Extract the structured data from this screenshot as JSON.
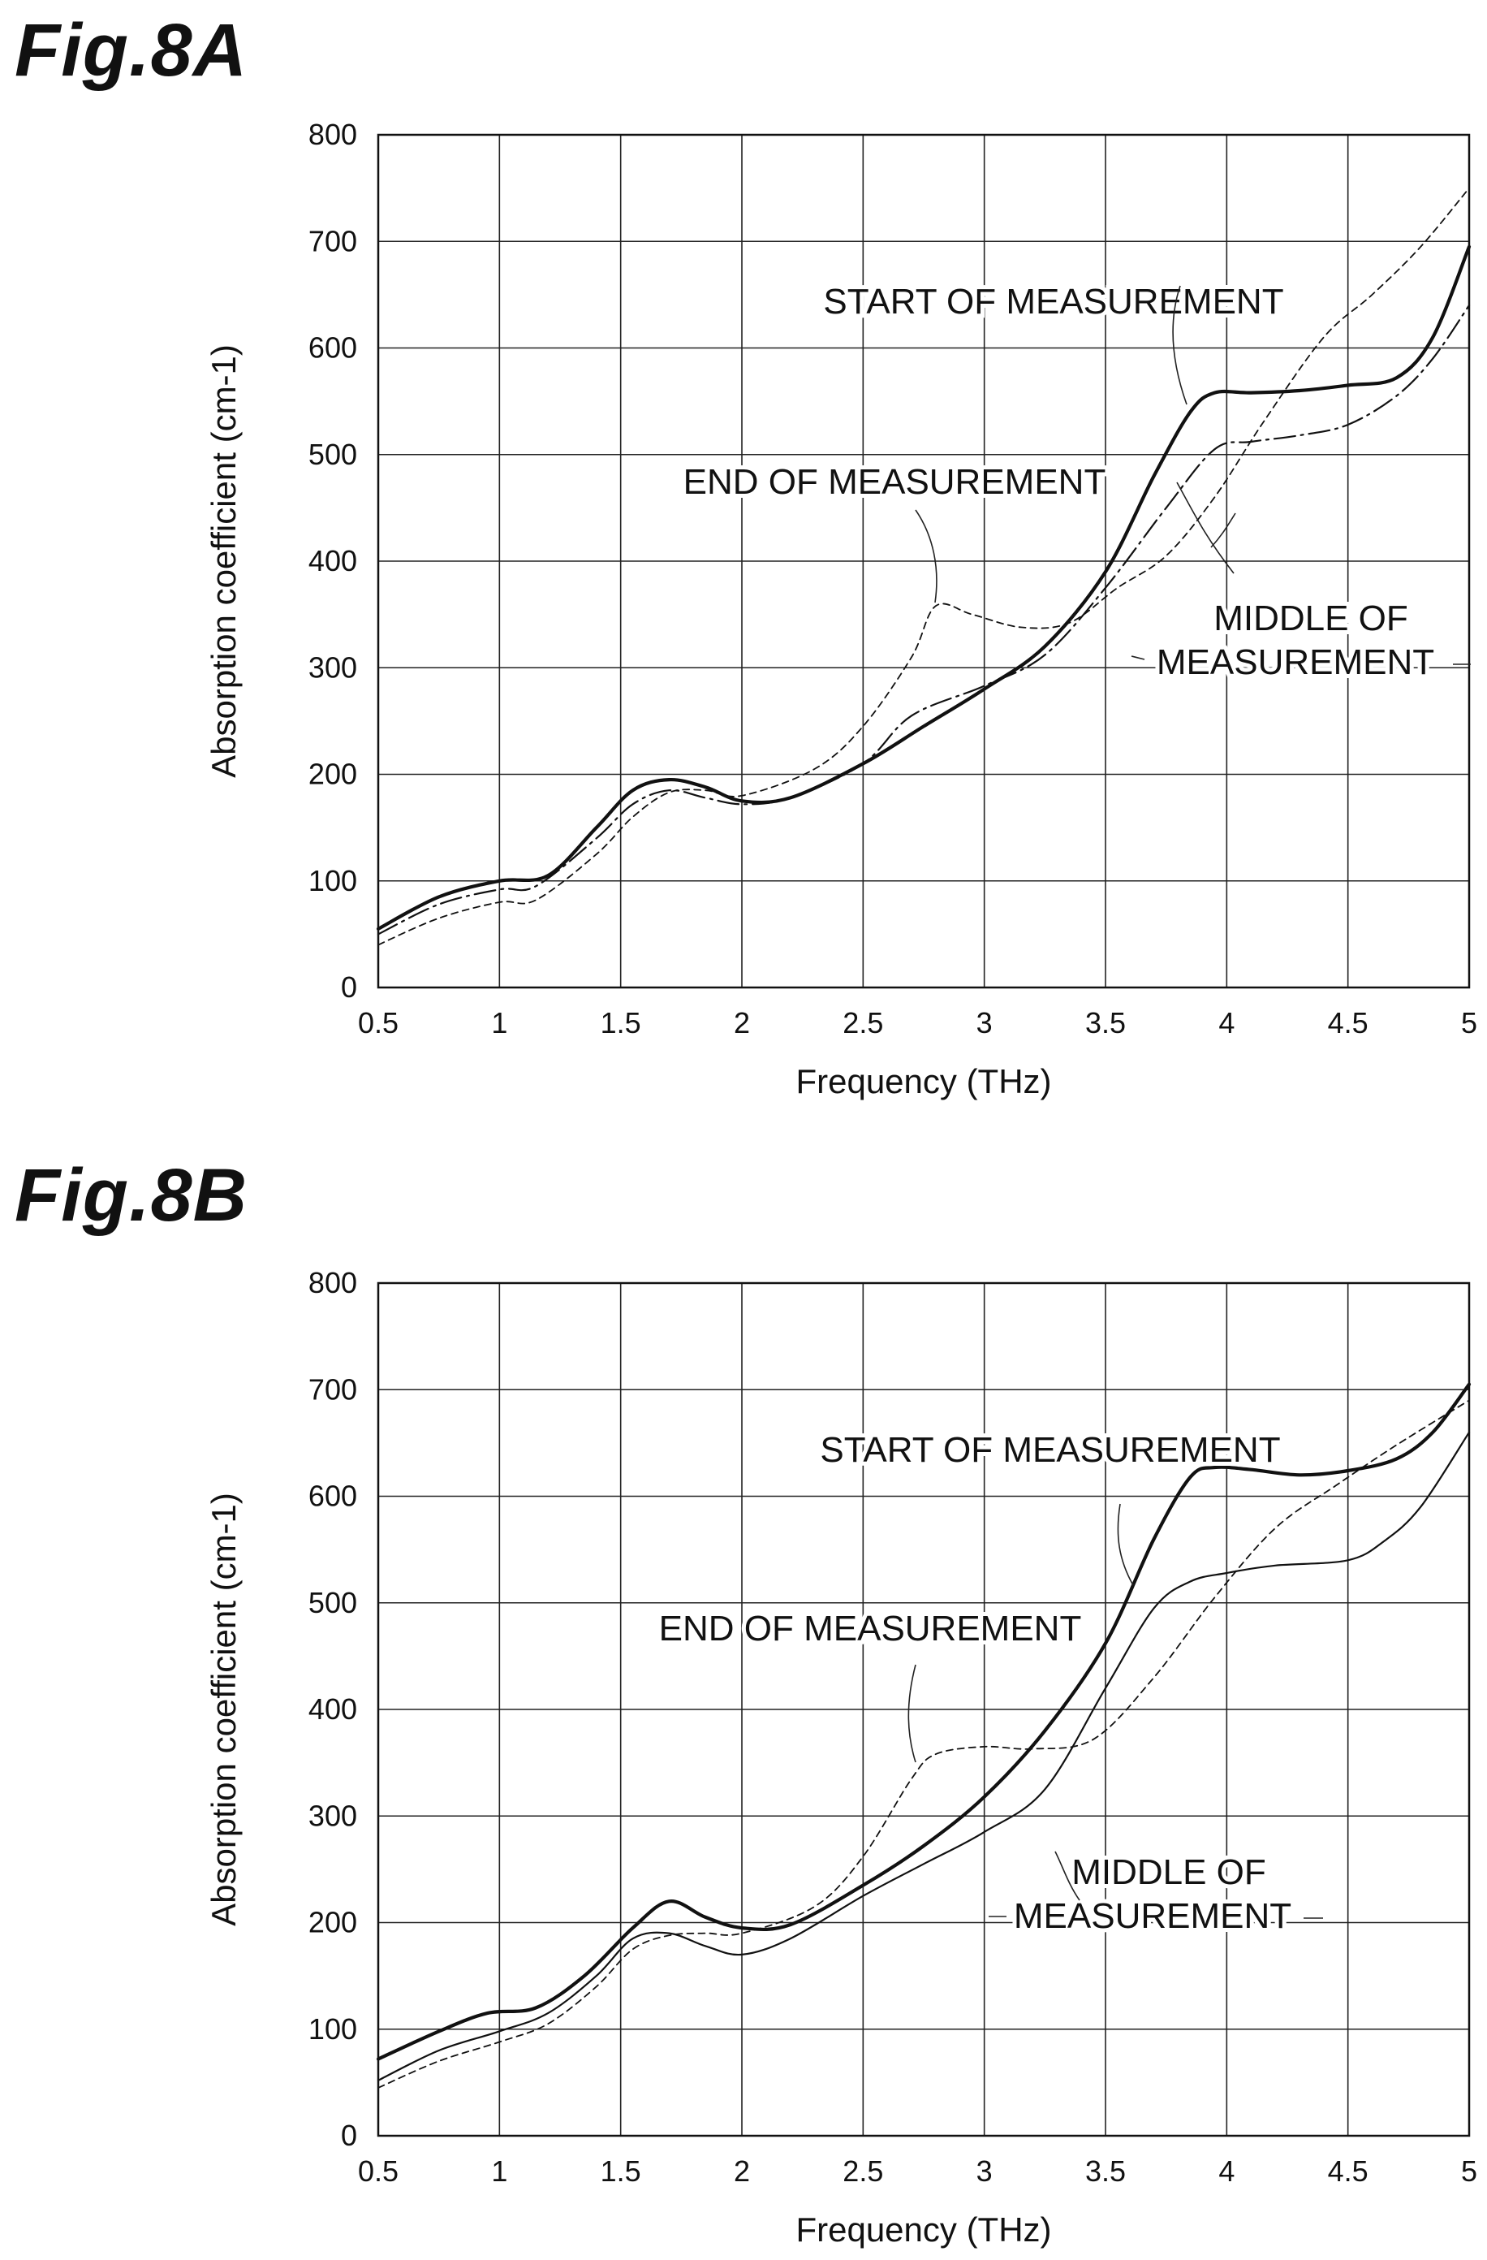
{
  "figures": {
    "a": {
      "title": "Fig.8A"
    },
    "b": {
      "title": "Fig.8B"
    }
  },
  "chart_data": [
    {
      "type": "line",
      "title": "Fig.8A",
      "xlabel": "Frequency (THz)",
      "ylabel": "Absorption coefficient (cm-1)",
      "xlim": [
        0.5,
        5
      ],
      "ylim": [
        0,
        800
      ],
      "xticks": [
        "0.5",
        "1",
        "1.5",
        "2",
        "2.5",
        "3",
        "3.5",
        "4",
        "4.5",
        "5"
      ],
      "yticks": [
        "0",
        "100",
        "200",
        "300",
        "400",
        "500",
        "600",
        "700",
        "800"
      ],
      "grid": true,
      "series": [
        {
          "name": "START OF MEASUREMENT",
          "style": "solid-bold",
          "points": [
            [
              0.5,
              55
            ],
            [
              0.75,
              85
            ],
            [
              1.0,
              100
            ],
            [
              1.2,
              105
            ],
            [
              1.4,
              150
            ],
            [
              1.55,
              185
            ],
            [
              1.7,
              195
            ],
            [
              1.85,
              188
            ],
            [
              2.0,
              175
            ],
            [
              2.2,
              178
            ],
            [
              2.5,
              210
            ],
            [
              2.75,
              245
            ],
            [
              3.0,
              280
            ],
            [
              3.25,
              320
            ],
            [
              3.5,
              390
            ],
            [
              3.7,
              480
            ],
            [
              3.85,
              540
            ],
            [
              3.95,
              558
            ],
            [
              4.1,
              558
            ],
            [
              4.3,
              560
            ],
            [
              4.5,
              565
            ],
            [
              4.7,
              572
            ],
            [
              4.85,
              610
            ],
            [
              5.0,
              695
            ]
          ]
        },
        {
          "name": "MIDDLE OF MEASUREMENT",
          "style": "dash-dot",
          "points": [
            [
              0.5,
              50
            ],
            [
              0.75,
              78
            ],
            [
              1.0,
              92
            ],
            [
              1.15,
              95
            ],
            [
              1.4,
              140
            ],
            [
              1.55,
              172
            ],
            [
              1.7,
              185
            ],
            [
              1.85,
              178
            ],
            [
              2.0,
              172
            ],
            [
              2.2,
              178
            ],
            [
              2.5,
              210
            ],
            [
              2.7,
              255
            ],
            [
              3.0,
              283
            ],
            [
              3.25,
              312
            ],
            [
              3.5,
              375
            ],
            [
              3.75,
              450
            ],
            [
              3.95,
              505
            ],
            [
              4.1,
              512
            ],
            [
              4.3,
              518
            ],
            [
              4.5,
              528
            ],
            [
              4.7,
              555
            ],
            [
              4.85,
              590
            ],
            [
              5.0,
              640
            ]
          ]
        },
        {
          "name": "END OF MEASUREMENT",
          "style": "dashed",
          "points": [
            [
              0.5,
              40
            ],
            [
              0.75,
              65
            ],
            [
              1.0,
              80
            ],
            [
              1.15,
              82
            ],
            [
              1.4,
              125
            ],
            [
              1.55,
              160
            ],
            [
              1.7,
              183
            ],
            [
              1.85,
              185
            ],
            [
              2.0,
              180
            ],
            [
              2.3,
              205
            ],
            [
              2.5,
              245
            ],
            [
              2.7,
              310
            ],
            [
              2.8,
              358
            ],
            [
              2.95,
              350
            ],
            [
              3.15,
              338
            ],
            [
              3.35,
              342
            ],
            [
              3.55,
              375
            ],
            [
              3.75,
              405
            ],
            [
              3.95,
              460
            ],
            [
              4.15,
              530
            ],
            [
              4.4,
              610
            ],
            [
              4.6,
              650
            ],
            [
              4.8,
              695
            ],
            [
              5.0,
              750
            ]
          ]
        }
      ],
      "annotations": [
        {
          "text": "START OF MEASUREMENT"
        },
        {
          "text": "END OF MEASUREMENT"
        },
        {
          "text": "MIDDLE OF"
        },
        {
          "text": "MEASUREMENT"
        }
      ]
    },
    {
      "type": "line",
      "title": "Fig.8B",
      "xlabel": "Frequency (THz)",
      "ylabel": "Absorption coefficient (cm-1)",
      "xlim": [
        0.5,
        5
      ],
      "ylim": [
        0,
        800
      ],
      "xticks": [
        "0.5",
        "1",
        "1.5",
        "2",
        "2.5",
        "3",
        "3.5",
        "4",
        "4.5",
        "5"
      ],
      "yticks": [
        "0",
        "100",
        "200",
        "300",
        "400",
        "500",
        "600",
        "700",
        "800"
      ],
      "grid": true,
      "series": [
        {
          "name": "START OF MEASUREMENT",
          "style": "solid-bold",
          "points": [
            [
              0.5,
              72
            ],
            [
              0.75,
              98
            ],
            [
              0.95,
              115
            ],
            [
              1.15,
              120
            ],
            [
              1.35,
              150
            ],
            [
              1.55,
              195
            ],
            [
              1.7,
              220
            ],
            [
              1.85,
              205
            ],
            [
              2.0,
              195
            ],
            [
              2.2,
              198
            ],
            [
              2.5,
              235
            ],
            [
              2.75,
              272
            ],
            [
              3.0,
              318
            ],
            [
              3.25,
              380
            ],
            [
              3.5,
              462
            ],
            [
              3.7,
              560
            ],
            [
              3.85,
              618
            ],
            [
              3.95,
              627
            ],
            [
              4.1,
              625
            ],
            [
              4.3,
              620
            ],
            [
              4.5,
              624
            ],
            [
              4.7,
              635
            ],
            [
              4.85,
              660
            ],
            [
              5.0,
              705
            ]
          ]
        },
        {
          "name": "MIDDLE OF MEASUREMENT",
          "style": "solid-thin",
          "points": [
            [
              0.5,
              52
            ],
            [
              0.75,
              80
            ],
            [
              1.0,
              98
            ],
            [
              1.2,
              115
            ],
            [
              1.4,
              150
            ],
            [
              1.55,
              185
            ],
            [
              1.7,
              190
            ],
            [
              1.85,
              178
            ],
            [
              2.0,
              170
            ],
            [
              2.2,
              185
            ],
            [
              2.5,
              225
            ],
            [
              2.75,
              255
            ],
            [
              3.0,
              285
            ],
            [
              3.25,
              325
            ],
            [
              3.5,
              420
            ],
            [
              3.7,
              495
            ],
            [
              3.85,
              520
            ],
            [
              4.0,
              528
            ],
            [
              4.2,
              535
            ],
            [
              4.5,
              540
            ],
            [
              4.65,
              558
            ],
            [
              4.8,
              590
            ],
            [
              5.0,
              660
            ]
          ]
        },
        {
          "name": "END OF MEASUREMENT",
          "style": "dashed",
          "points": [
            [
              0.5,
              45
            ],
            [
              0.75,
              70
            ],
            [
              1.0,
              88
            ],
            [
              1.2,
              105
            ],
            [
              1.4,
              140
            ],
            [
              1.55,
              175
            ],
            [
              1.7,
              188
            ],
            [
              1.85,
              190
            ],
            [
              2.0,
              190
            ],
            [
              2.3,
              215
            ],
            [
              2.5,
              262
            ],
            [
              2.7,
              335
            ],
            [
              2.8,
              358
            ],
            [
              3.0,
              365
            ],
            [
              3.2,
              363
            ],
            [
              3.45,
              372
            ],
            [
              3.7,
              430
            ],
            [
              3.95,
              505
            ],
            [
              4.2,
              570
            ],
            [
              4.45,
              610
            ],
            [
              4.7,
              648
            ],
            [
              5.0,
              690
            ]
          ]
        }
      ],
      "annotations": [
        {
          "text": "START OF MEASUREMENT"
        },
        {
          "text": "END OF MEASUREMENT"
        },
        {
          "text": "MIDDLE OF"
        },
        {
          "text": "MEASUREMENT"
        }
      ]
    }
  ]
}
